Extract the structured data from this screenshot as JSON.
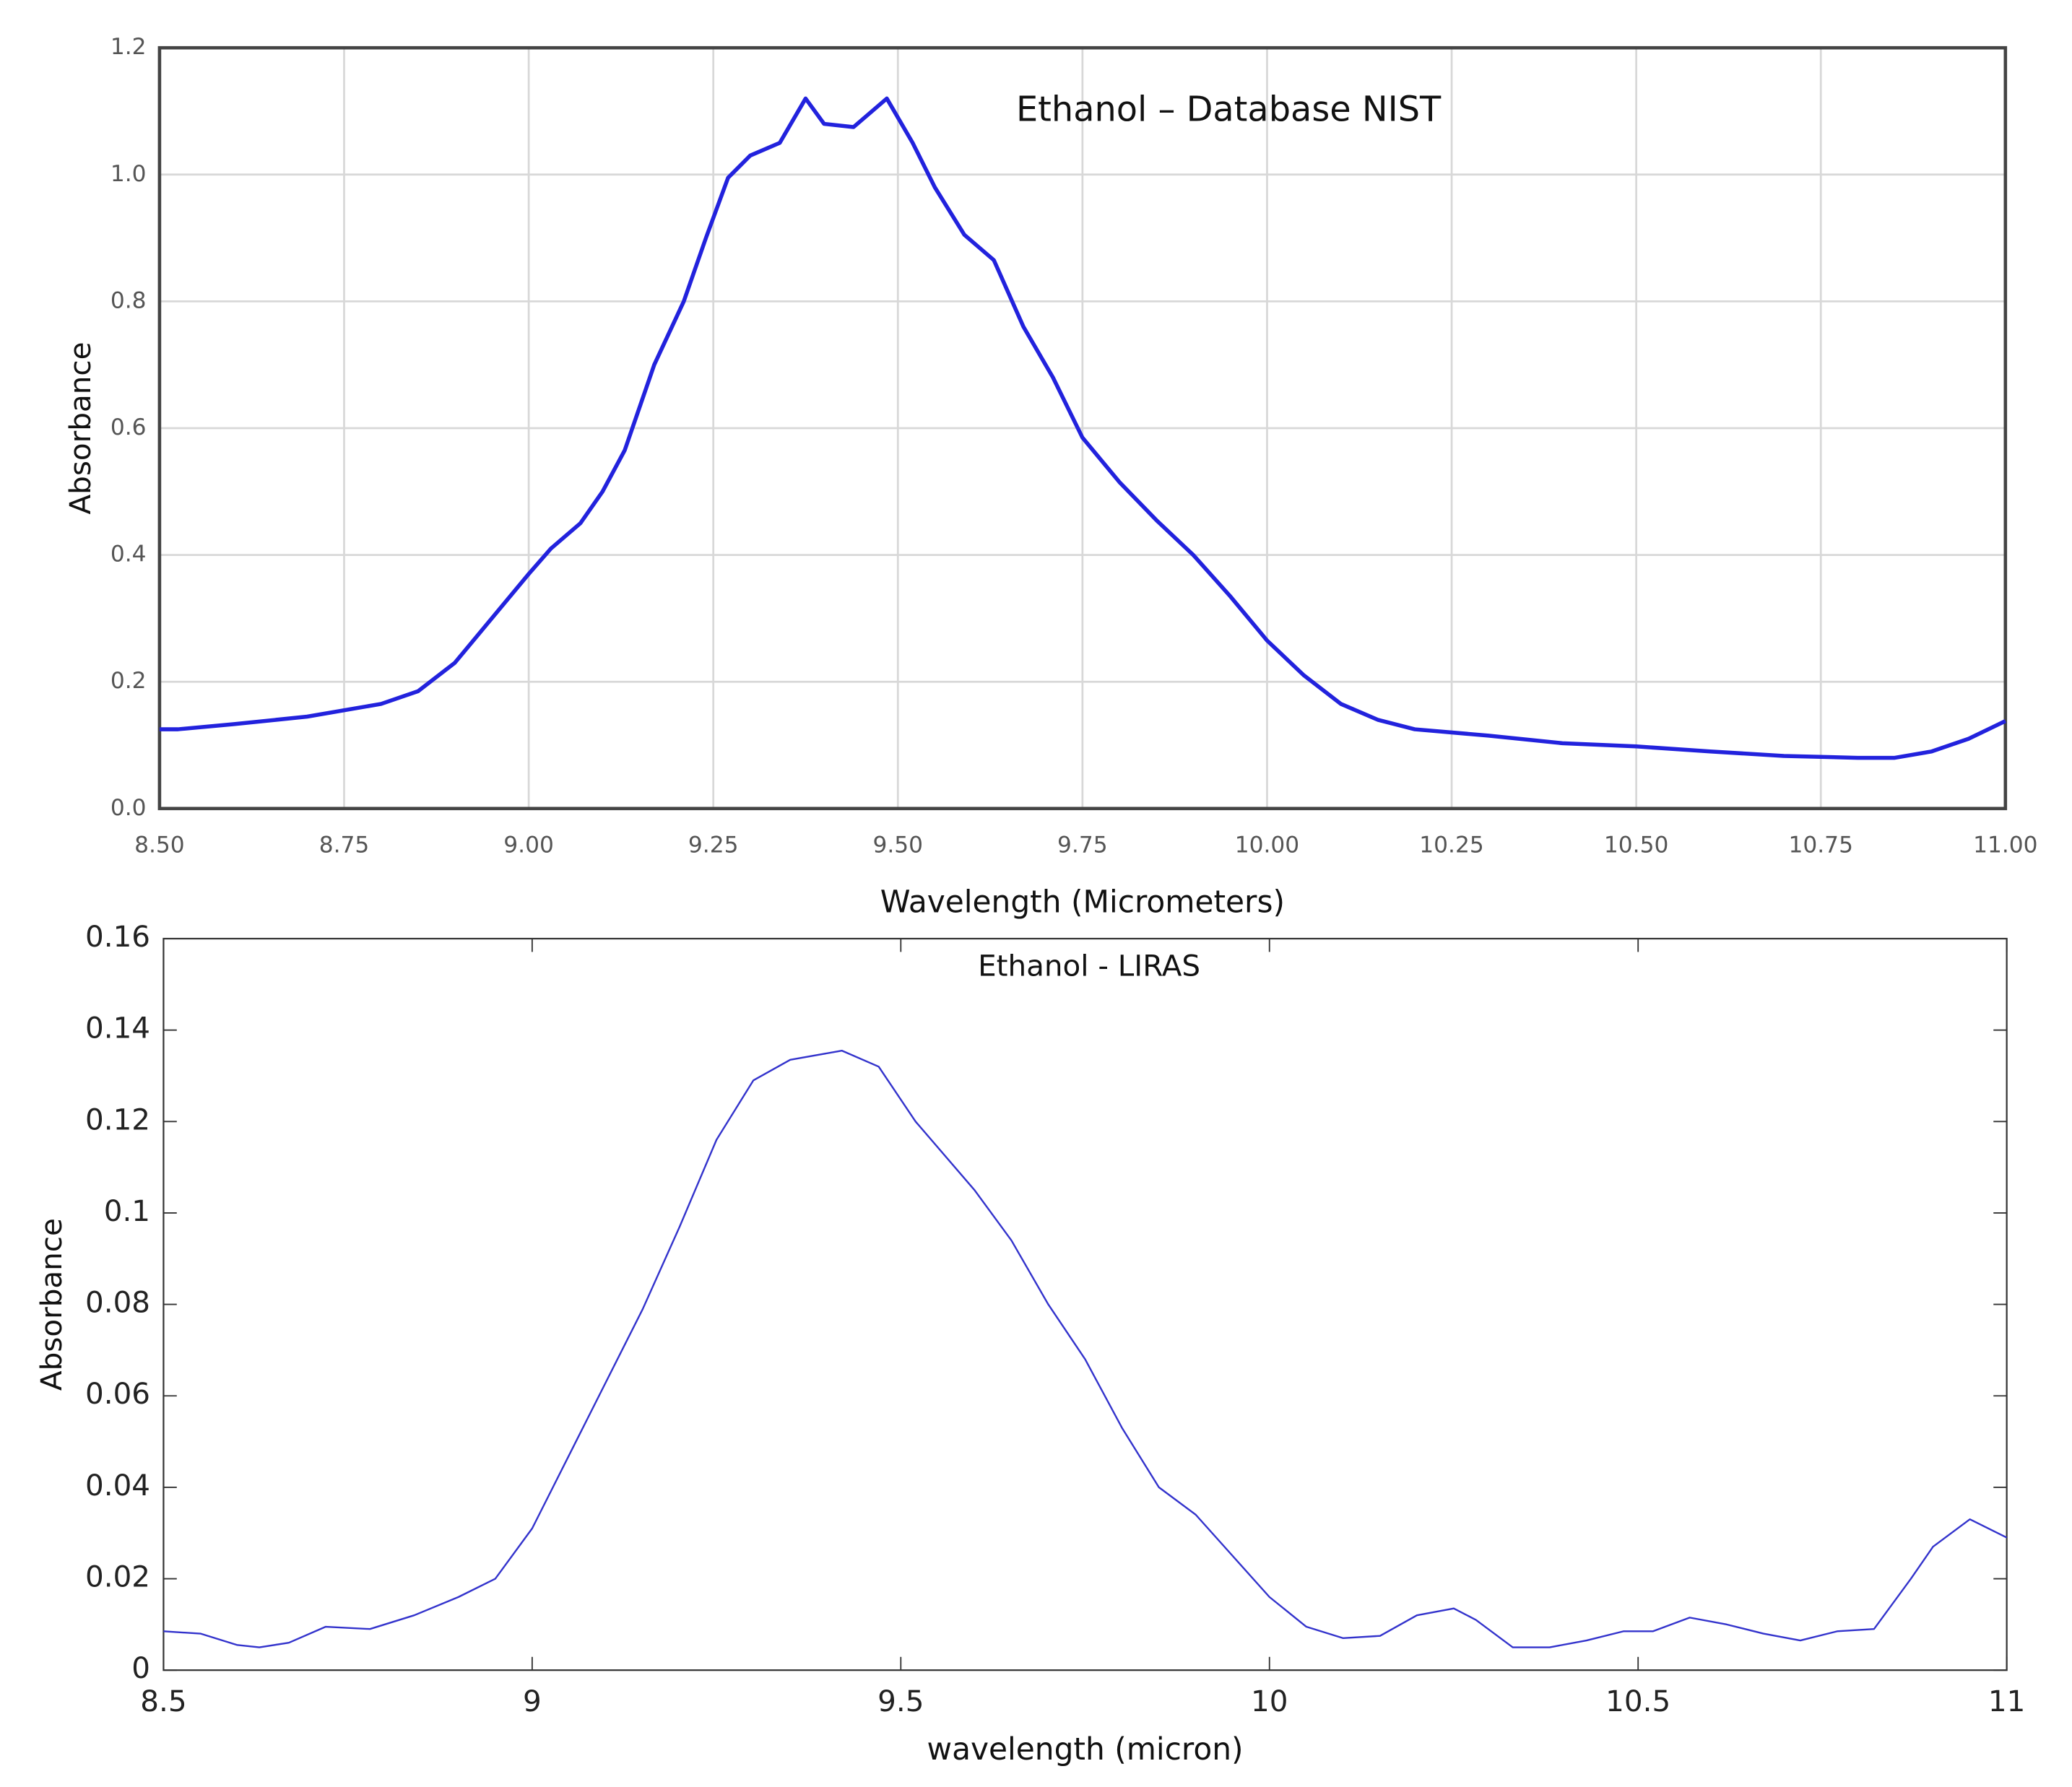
{
  "chart_data": [
    {
      "type": "line",
      "title": "Ethanol – Database NIST",
      "x_label": "Wavelength (Micrometers)",
      "y_label": "Absorbance",
      "color": "#2222dd",
      "grid": true,
      "xlim": [
        8.5,
        11
      ],
      "ylim": [
        0,
        1.2
      ],
      "xticks": [
        {
          "value": 8.5,
          "label": "8.50"
        },
        8.75,
        {
          "value": 9,
          "label": "9.00"
        },
        9.25,
        {
          "value": 9.5,
          "label": "9.50"
        },
        9.75,
        {
          "value": 10,
          "label": "10.00"
        },
        10.25,
        {
          "value": 10.5,
          "label": "10.50"
        },
        10.75,
        {
          "value": 11,
          "label": "11.00"
        }
      ],
      "yticks": [
        {
          "value": 0,
          "label": "0.0"
        },
        0.2,
        0.4,
        0.6,
        0.8,
        {
          "value": 1,
          "label": "1.0"
        },
        1.2
      ],
      "x": [
        8.5,
        8.525,
        8.6,
        8.7,
        8.8,
        8.85,
        8.9,
        8.95,
        9.0,
        9.03,
        9.07,
        9.1,
        9.13,
        9.17,
        9.21,
        9.24,
        9.27,
        9.3,
        9.34,
        9.375,
        9.4,
        9.44,
        9.485,
        9.52,
        9.55,
        9.59,
        9.63,
        9.67,
        9.71,
        9.75,
        9.8,
        9.85,
        9.9,
        9.95,
        10.0,
        10.05,
        10.1,
        10.15,
        10.2,
        10.3,
        10.4,
        10.5,
        10.6,
        10.7,
        10.8,
        10.85,
        10.9,
        10.95,
        11.0
      ],
      "values": [
        0.125,
        0.125,
        0.133,
        0.145,
        0.165,
        0.185,
        0.23,
        0.3,
        0.37,
        0.41,
        0.45,
        0.5,
        0.565,
        0.7,
        0.8,
        0.9,
        0.995,
        1.03,
        1.05,
        1.12,
        1.08,
        1.075,
        1.12,
        1.05,
        0.98,
        0.905,
        0.865,
        0.76,
        0.68,
        0.585,
        0.515,
        0.455,
        0.4,
        0.335,
        0.265,
        0.21,
        0.165,
        0.14,
        0.125,
        0.115,
        0.103,
        0.098,
        0.09,
        0.083,
        0.08,
        0.08,
        0.09,
        0.11,
        0.138
      ]
    },
    {
      "type": "line",
      "title": "Ethanol - LIRAS",
      "x_label": "wavelength (micron)",
      "y_label": "Absorbance",
      "color": "#3333cc",
      "grid": false,
      "xlim": [
        8.5,
        11
      ],
      "ylim": [
        0,
        0.16
      ],
      "xticks": [
        8.5,
        9,
        9.5,
        10,
        10.5,
        11
      ],
      "yticks": [
        0,
        0.02,
        0.04,
        0.06,
        0.08,
        0.1,
        0.12,
        0.14,
        0.16
      ],
      "x": [
        8.5,
        8.55,
        8.6,
        8.63,
        8.67,
        8.72,
        8.78,
        8.84,
        8.9,
        8.95,
        9.0,
        9.05,
        9.1,
        9.15,
        9.2,
        9.25,
        9.3,
        9.35,
        9.42,
        9.47,
        9.52,
        9.6,
        9.65,
        9.7,
        9.75,
        9.8,
        9.85,
        9.9,
        9.95,
        10.0,
        10.05,
        10.1,
        10.15,
        10.2,
        10.25,
        10.28,
        10.33,
        10.38,
        10.43,
        10.48,
        10.52,
        10.57,
        10.62,
        10.67,
        10.72,
        10.77,
        10.82,
        10.87,
        10.9,
        10.95,
        11.0
      ],
      "values": [
        0.0085,
        0.008,
        0.0055,
        0.005,
        0.006,
        0.0095,
        0.009,
        0.012,
        0.016,
        0.02,
        0.031,
        0.047,
        0.063,
        0.079,
        0.097,
        0.116,
        0.129,
        0.1335,
        0.1355,
        0.132,
        0.12,
        0.105,
        0.094,
        0.08,
        0.068,
        0.053,
        0.04,
        0.034,
        0.025,
        0.016,
        0.0095,
        0.007,
        0.0075,
        0.012,
        0.0135,
        0.011,
        0.005,
        0.005,
        0.0065,
        0.0085,
        0.0085,
        0.0115,
        0.01,
        0.008,
        0.0065,
        0.0085,
        0.009,
        0.02,
        0.027,
        0.033,
        0.029
      ]
    }
  ]
}
